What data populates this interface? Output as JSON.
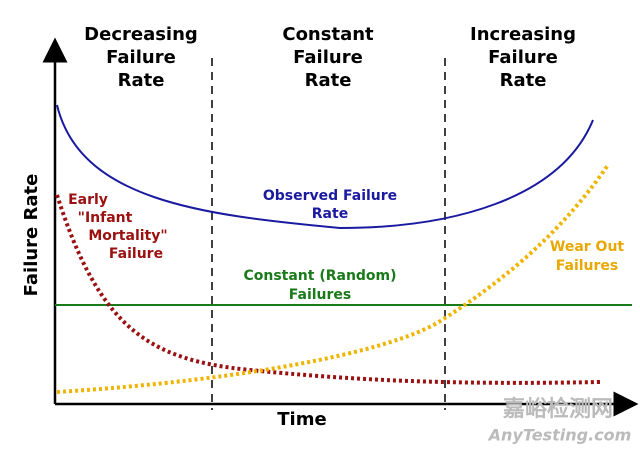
{
  "headers": [
    [
      "Decreasing",
      "Failure",
      "Rate"
    ],
    [
      "Constant",
      "Failure",
      "Rate"
    ],
    [
      "Increasing",
      "Failure",
      "Rate"
    ]
  ],
  "axes": {
    "y_label": "Failure Rate",
    "x_label": "Time"
  },
  "curves": {
    "observed": [
      "Observed Failure",
      "Rate"
    ],
    "early": [
      "Early",
      "\"Infant",
      "Mortality\"",
      "Failure"
    ],
    "constant": [
      "Constant (Random)",
      "Failures"
    ],
    "wear_out": [
      "Wear Out",
      "Failures"
    ]
  },
  "watermark": {
    "cn": "嘉峪检测网",
    "en": "AnyTesting.com"
  }
}
